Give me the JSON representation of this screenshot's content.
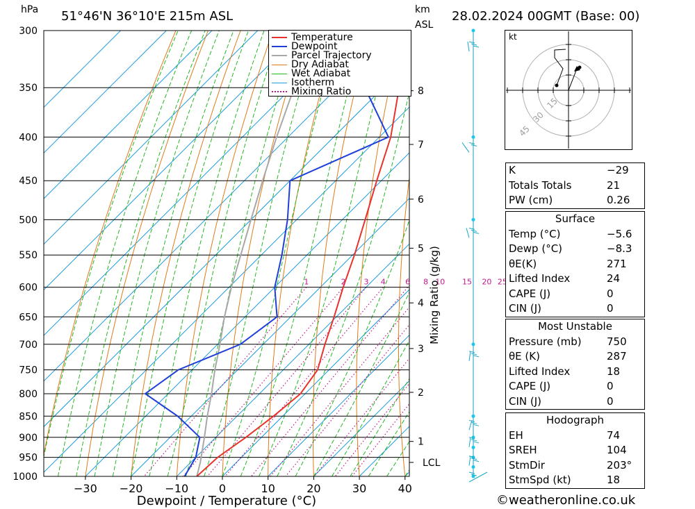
{
  "header": {
    "pressure_unit": "hPa",
    "location": "51°46'N  36°10'E  215m  ASL",
    "height_unit": "km",
    "height_unit_sub": "ASL",
    "datetime": "28.02.2024  00GMT  (Base: 00)"
  },
  "legend": {
    "items": [
      {
        "label": "Temperature",
        "color": "#e8322c",
        "style": "solid"
      },
      {
        "label": "Dewpoint",
        "color": "#1f3fd8",
        "style": "solid"
      },
      {
        "label": "Parcel Trajectory",
        "color": "#a8a8a8",
        "style": "solid"
      },
      {
        "label": "Dry Adiabat",
        "color": "#e07a1a",
        "style": "solid"
      },
      {
        "label": "Wet Adiabat",
        "color": "#22b822",
        "style": "solid"
      },
      {
        "label": "Isotherm",
        "color": "#1c9ce0",
        "style": "solid"
      },
      {
        "label": "Mixing Ratio",
        "color": "#c0188a",
        "style": "dotted"
      }
    ]
  },
  "chart_data": {
    "type": "skew-t",
    "title": "51°46'N  36°10'E  215m  ASL",
    "xlabel": "Dewpoint / Temperature (°C)",
    "ylabel": "hPa",
    "xlim": [
      -40,
      40
    ],
    "ylim": [
      1000,
      300
    ],
    "x_ticks": [
      "−30",
      "−20",
      "−10",
      "0",
      "10",
      "20",
      "30",
      "40"
    ],
    "x_tick_values": [
      -30,
      -20,
      -10,
      0,
      10,
      20,
      30,
      40
    ],
    "pressure_levels": [
      "300",
      "350",
      "400",
      "450",
      "500",
      "550",
      "600",
      "650",
      "700",
      "750",
      "800",
      "850",
      "900",
      "950",
      "1000"
    ],
    "pressure_values": [
      300,
      350,
      400,
      450,
      500,
      550,
      600,
      650,
      700,
      750,
      800,
      850,
      900,
      950,
      1000
    ],
    "km_ticks": [
      {
        "label": "1",
        "p": 910
      },
      {
        "label": "2",
        "p": 797
      },
      {
        "label": "3",
        "p": 708
      },
      {
        "label": "4",
        "p": 626
      },
      {
        "label": "5",
        "p": 540
      },
      {
        "label": "6",
        "p": 473
      },
      {
        "label": "7",
        "p": 408
      },
      {
        "label": "8",
        "p": 353
      },
      {
        "label": "LCL",
        "p": 963
      }
    ],
    "mixing_ratio_label": "Mixing Ratio (g/kg)",
    "mixing_ratio_values": [
      "1",
      "2",
      "3",
      "4",
      "6",
      "8",
      "10",
      "15",
      "20",
      "25"
    ],
    "mixing_ratio_numbers": [
      1,
      2,
      3,
      4,
      6,
      8,
      10,
      15,
      20,
      25
    ],
    "series": [
      {
        "name": "Temperature",
        "points": [
          [
            1000,
            -5.6
          ],
          [
            950,
            -5.2
          ],
          [
            900,
            -3.4
          ],
          [
            850,
            -2.0
          ],
          [
            800,
            -1.0
          ],
          [
            750,
            -2.5
          ],
          [
            700,
            -6.5
          ],
          [
            650,
            -10.5
          ],
          [
            600,
            -15.0
          ],
          [
            550,
            -19.6
          ],
          [
            500,
            -25.0
          ],
          [
            450,
            -31.0
          ],
          [
            400,
            -37.5
          ],
          [
            350,
            -46.5
          ],
          [
            300,
            -56.0
          ]
        ]
      },
      {
        "name": "Dewpoint",
        "points": [
          [
            1000,
            -8.3
          ],
          [
            950,
            -10.0
          ],
          [
            900,
            -13.5
          ],
          [
            850,
            -23.0
          ],
          [
            800,
            -35.0
          ],
          [
            750,
            -33.0
          ],
          [
            700,
            -25.0
          ],
          [
            650,
            -23.0
          ],
          [
            600,
            -30.0
          ],
          [
            550,
            -35.5
          ],
          [
            500,
            -42.0
          ],
          [
            450,
            -50.0
          ],
          [
            400,
            -38.0
          ],
          [
            350,
            -54.0
          ],
          [
            300,
            -64.0
          ]
        ]
      },
      {
        "name": "Parcel Trajectory",
        "points": [
          [
            1000,
            -5.6
          ],
          [
            963,
            -7.9
          ],
          [
            900,
            -12.5
          ],
          [
            850,
            -16.5
          ],
          [
            800,
            -20.5
          ],
          [
            750,
            -25.0
          ],
          [
            700,
            -29.5
          ],
          [
            650,
            -34.5
          ],
          [
            600,
            -39.5
          ],
          [
            550,
            -44.5
          ],
          [
            500,
            -50.0
          ],
          [
            450,
            -56.0
          ],
          [
            400,
            -62.5
          ],
          [
            350,
            -69.5
          ],
          [
            300,
            -77.0
          ]
        ]
      }
    ]
  },
  "hodograph": {
    "unit_label": "kt",
    "ring_labels": [
      "15",
      "30",
      "45"
    ]
  },
  "indices": {
    "general": [
      {
        "key": "K",
        "value": "−29"
      },
      {
        "key": "Totals Totals",
        "value": "21"
      },
      {
        "key": "PW (cm)",
        "value": "0.26"
      }
    ],
    "surface": {
      "title": "Surface",
      "rows": [
        {
          "key": "Temp (°C)",
          "value": "−5.6"
        },
        {
          "key": "Dewp (°C)",
          "value": "−8.3"
        },
        {
          "key": "θE(K)",
          "value": "271"
        },
        {
          "key": "Lifted Index",
          "value": "24"
        },
        {
          "key": "CAPE (J)",
          "value": "0"
        },
        {
          "key": "CIN (J)",
          "value": "0"
        }
      ]
    },
    "most_unstable": {
      "title": "Most Unstable",
      "rows": [
        {
          "key": "Pressure (mb)",
          "value": "750"
        },
        {
          "key": "θE (K)",
          "value": "287"
        },
        {
          "key": "Lifted Index",
          "value": "18"
        },
        {
          "key": "CAPE (J)",
          "value": "0"
        },
        {
          "key": "CIN (J)",
          "value": "0"
        }
      ]
    },
    "hodograph": {
      "title": "Hodograph",
      "rows": [
        {
          "key": "EH",
          "value": "74"
        },
        {
          "key": "SREH",
          "value": "104"
        },
        {
          "key": "StmDir",
          "value": "203°"
        },
        {
          "key": "StmSpd (kt)",
          "value": "18"
        }
      ]
    }
  },
  "footer": {
    "copyright_symbol": "©",
    "site": "weatheronline.co.uk"
  }
}
